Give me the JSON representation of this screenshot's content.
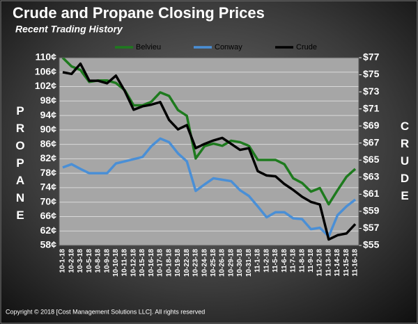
{
  "chart_data": {
    "type": "line",
    "title": "Crude and Propane Closing Prices",
    "subtitle": "Recent Trading History",
    "ylabel": "PROPANE",
    "y2label": "CRUDE",
    "annotations": [
      "Copyright  © 2018  [Cost Management  Solutions LLC].  All rights reserved"
    ],
    "categories": [
      "10-1-18",
      "10-2-18",
      "10-3-18",
      "10-5-18",
      "10-8-18",
      "10-9-18",
      "10-10-18",
      "10-11-18",
      "10-12-18",
      "10-15-18",
      "10-16-18",
      "10-17-18",
      "10-18-18",
      "10-19-18",
      "10-22-18",
      "10-23-18",
      "10-24-18",
      "10-25-18",
      "10-26-18",
      "10-29-18",
      "10-30-18",
      "10-31-18",
      "11-1-18",
      "11-2-18",
      "11-5-18",
      "11-6-18",
      "11-7-18",
      "11-8-18",
      "11-9-18",
      "11-12-18",
      "11-13-18",
      "11-14-18",
      "11-15-18",
      "11-16-18"
    ],
    "series": [
      {
        "name": "Belvieu",
        "color": "#1e7a1e",
        "axis": "y",
        "values": [
          110,
          107.6,
          106.6,
          103.3,
          103.7,
          103.7,
          103,
          101,
          96.8,
          96.8,
          97.8,
          100.4,
          99.4,
          95.5,
          93.9,
          82.1,
          85.5,
          86.2,
          85.6,
          87,
          86.6,
          85.6,
          81.7,
          81.7,
          81.7,
          80.5,
          76.6,
          75.3,
          72.9,
          73.9,
          69.4,
          73.3,
          77,
          79.2
        ]
      },
      {
        "name": "Conway",
        "color": "#4a8fd6",
        "axis": "y",
        "values": [
          79.6,
          80.5,
          79.2,
          78,
          78,
          78,
          80.7,
          81.3,
          81.9,
          82.5,
          85.5,
          87.6,
          86.6,
          83.5,
          81.3,
          73.1,
          74.9,
          76.6,
          76.2,
          75.8,
          73.3,
          71.7,
          68.8,
          65.8,
          67.2,
          67.2,
          65.5,
          65.3,
          62.5,
          62.9,
          60.5,
          66.4,
          68.8,
          70.7
        ]
      },
      {
        "name": "Crude",
        "color": "#000000",
        "axis": "y2",
        "values": [
          75.3,
          75.1,
          76.3,
          74.3,
          74.3,
          74,
          74.9,
          73.1,
          70.9,
          71.3,
          71.5,
          71.8,
          69.7,
          68.6,
          69.1,
          66.4,
          66.9,
          67.3,
          67.6,
          66.9,
          66.2,
          66.4,
          63.7,
          63.2,
          63.1,
          62.2,
          61.5,
          60.7,
          60.1,
          59.8,
          55.7,
          56.2,
          56.4,
          57.5
        ]
      }
    ],
    "ylim": [
      58,
      110
    ],
    "yticks": [
      {
        "value": 58,
        "label": "58¢"
      },
      {
        "value": 62,
        "label": "62¢"
      },
      {
        "value": 66,
        "label": "66¢"
      },
      {
        "value": 70,
        "label": "70¢"
      },
      {
        "value": 74,
        "label": "74¢"
      },
      {
        "value": 78,
        "label": "78¢"
      },
      {
        "value": 82,
        "label": "82¢"
      },
      {
        "value": 86,
        "label": "86¢"
      },
      {
        "value": 90,
        "label": "90¢"
      },
      {
        "value": 94,
        "label": "94¢"
      },
      {
        "value": 98,
        "label": "98¢"
      },
      {
        "value": 102,
        "label": "102¢"
      },
      {
        "value": 106,
        "label": "106¢"
      },
      {
        "value": 110,
        "label": "110¢"
      }
    ],
    "y2lim": [
      55,
      77
    ],
    "y2ticks": [
      {
        "value": 55,
        "label": "$55"
      },
      {
        "value": 57,
        "label": "$57"
      },
      {
        "value": 59,
        "label": "$59"
      },
      {
        "value": 61,
        "label": "$61"
      },
      {
        "value": 63,
        "label": "$63"
      },
      {
        "value": 65,
        "label": "$65"
      },
      {
        "value": 67,
        "label": "$67"
      },
      {
        "value": 69,
        "label": "$69"
      },
      {
        "value": 71,
        "label": "$71"
      },
      {
        "value": 73,
        "label": "$73"
      },
      {
        "value": 75,
        "label": "$75"
      },
      {
        "value": 77,
        "label": "$77"
      }
    ],
    "grid": true,
    "legend": "top"
  }
}
